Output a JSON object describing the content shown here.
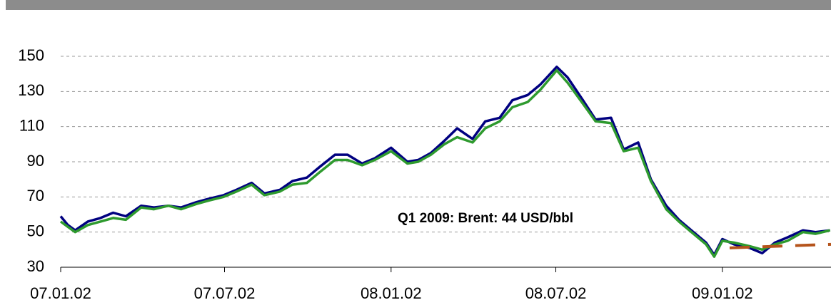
{
  "chart_data": {
    "type": "line",
    "annotation": "Q1 2009: Brent: 44 USD/bbl",
    "xlim": [
      "2007-01-02",
      "2009-05-02"
    ],
    "xticks": [
      {
        "value": "2007-01-02",
        "label": "07.01.02"
      },
      {
        "value": "2007-07-02",
        "label": "07.07.02"
      },
      {
        "value": "2008-01-02",
        "label": "08.01.02"
      },
      {
        "value": "2008-07-02",
        "label": "08.07.02"
      },
      {
        "value": "2009-01-02",
        "label": "09.01.02"
      }
    ],
    "ylim": [
      30,
      150
    ],
    "yticks": [
      30,
      50,
      70,
      90,
      110,
      130,
      150
    ],
    "grid": true,
    "series": [
      {
        "color": "#000080",
        "dashed": false,
        "x": [
          "2007-01-02",
          "2007-01-10",
          "2007-01-18",
          "2007-02-01",
          "2007-02-15",
          "2007-03-01",
          "2007-03-15",
          "2007-04-01",
          "2007-04-15",
          "2007-05-01",
          "2007-05-15",
          "2007-06-01",
          "2007-06-15",
          "2007-07-01",
          "2007-07-15",
          "2007-08-01",
          "2007-08-15",
          "2007-09-01",
          "2007-09-15",
          "2007-10-01",
          "2007-10-15",
          "2007-11-01",
          "2007-11-15",
          "2007-12-01",
          "2007-12-15",
          "2008-01-02",
          "2008-01-20",
          "2008-02-01",
          "2008-02-15",
          "2008-03-01",
          "2008-03-15",
          "2008-04-01",
          "2008-04-15",
          "2008-05-01",
          "2008-05-15",
          "2008-06-01",
          "2008-06-15",
          "2008-07-03",
          "2008-07-15",
          "2008-08-01",
          "2008-08-15",
          "2008-09-01",
          "2008-09-15",
          "2008-10-01",
          "2008-10-15",
          "2008-11-01",
          "2008-11-15",
          "2008-12-01",
          "2008-12-15",
          "2008-12-24",
          "2009-01-02",
          "2009-01-15",
          "2009-02-01",
          "2009-02-15",
          "2009-03-01",
          "2009-03-15",
          "2009-04-01",
          "2009-04-15",
          "2009-05-01"
        ],
        "values": [
          59,
          54,
          51,
          56,
          58,
          61,
          59,
          65,
          64,
          65,
          64,
          67,
          69,
          71,
          74,
          78,
          72,
          74,
          79,
          81,
          87,
          94,
          94,
          89,
          92,
          98,
          90,
          91,
          95,
          102,
          109,
          103,
          113,
          115,
          125,
          128,
          134,
          144,
          138,
          125,
          114,
          115,
          97,
          101,
          80,
          65,
          57,
          50,
          44,
          37,
          46,
          43,
          41,
          38,
          44,
          47,
          51,
          50,
          51
        ]
      },
      {
        "color": "#2e9a2e",
        "dashed": false,
        "x": [
          "2007-01-02",
          "2007-01-10",
          "2007-01-18",
          "2007-02-01",
          "2007-02-15",
          "2007-03-01",
          "2007-03-15",
          "2007-04-01",
          "2007-04-15",
          "2007-05-01",
          "2007-05-15",
          "2007-06-01",
          "2007-06-15",
          "2007-07-01",
          "2007-07-15",
          "2007-08-01",
          "2007-08-15",
          "2007-09-01",
          "2007-09-15",
          "2007-10-01",
          "2007-10-15",
          "2007-11-01",
          "2007-11-15",
          "2007-12-01",
          "2007-12-15",
          "2008-01-02",
          "2008-01-20",
          "2008-02-01",
          "2008-02-15",
          "2008-03-01",
          "2008-03-15",
          "2008-04-01",
          "2008-04-15",
          "2008-05-01",
          "2008-05-15",
          "2008-06-01",
          "2008-06-15",
          "2008-07-03",
          "2008-07-15",
          "2008-08-01",
          "2008-08-15",
          "2008-09-01",
          "2008-09-15",
          "2008-10-01",
          "2008-10-15",
          "2008-11-01",
          "2008-11-15",
          "2008-12-01",
          "2008-12-15",
          "2008-12-24",
          "2009-01-02",
          "2009-01-15",
          "2009-02-01",
          "2009-02-15",
          "2009-03-01",
          "2009-03-15",
          "2009-04-01",
          "2009-04-15",
          "2009-05-01"
        ],
        "values": [
          56,
          53,
          50,
          54,
          56,
          58,
          57,
          64,
          63,
          65,
          63,
          66,
          68,
          70,
          73,
          77,
          71,
          73,
          77,
          78,
          84,
          91,
          91,
          88,
          91,
          96,
          89,
          90,
          94,
          100,
          104,
          101,
          109,
          113,
          121,
          124,
          131,
          142,
          135,
          123,
          113,
          112,
          96,
          98,
          79,
          63,
          56,
          49,
          43,
          36,
          45,
          44,
          42,
          40,
          43,
          45,
          50,
          49,
          51
        ]
      },
      {
        "color": "#b5541c",
        "dashed": true,
        "x": [
          "2009-01-10",
          "2009-05-02"
        ],
        "values": [
          41,
          43
        ]
      }
    ]
  }
}
